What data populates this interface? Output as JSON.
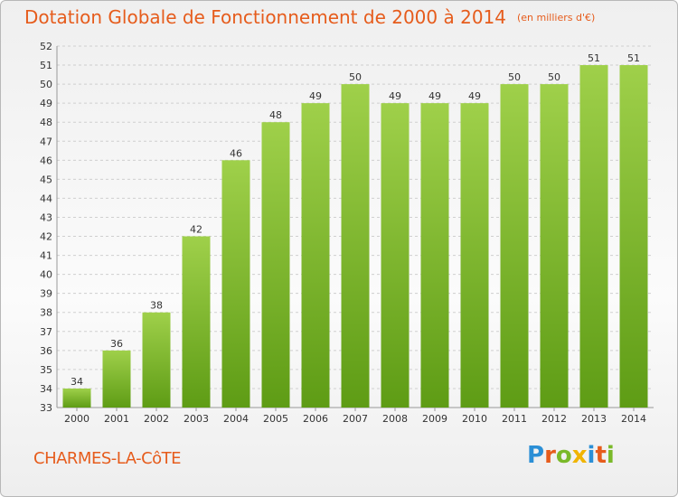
{
  "header": {
    "title": "Dotation Globale de Fonctionnement de 2000 à 2014",
    "unit": "(en milliers d'€)"
  },
  "footer": {
    "commune": "CHARMES-LA-CôTE",
    "logo": "Proxiti"
  },
  "colors": {
    "title": "#e65c1c",
    "bar_light": "#9fd04a",
    "bar_dark": "#5e9c15",
    "logo": [
      "#2b8fd6",
      "#e65c1c",
      "#7ab929",
      "#f0b400",
      "#2b8fd6",
      "#e65c1c",
      "#7ab929"
    ]
  },
  "chart_data": {
    "type": "bar",
    "categories": [
      "2000",
      "2001",
      "2002",
      "2003",
      "2004",
      "2005",
      "2006",
      "2007",
      "2008",
      "2009",
      "2010",
      "2011",
      "2012",
      "2013",
      "2014"
    ],
    "values": [
      34,
      36,
      38,
      42,
      46,
      48,
      49,
      50,
      49,
      49,
      49,
      50,
      50,
      51,
      51
    ],
    "data_labels": [
      "34",
      "36",
      "38",
      "42",
      "46",
      "48",
      "49",
      "50",
      "49",
      "49",
      "49",
      "50",
      "50",
      "51",
      "51"
    ],
    "ylim": [
      33,
      52
    ],
    "yticks": [
      "33",
      "34",
      "35",
      "36",
      "37",
      "38",
      "39",
      "40",
      "41",
      "42",
      "43",
      "44",
      "45",
      "46",
      "47",
      "48",
      "49",
      "50",
      "51",
      "52"
    ],
    "grid": true,
    "legend": "none"
  }
}
